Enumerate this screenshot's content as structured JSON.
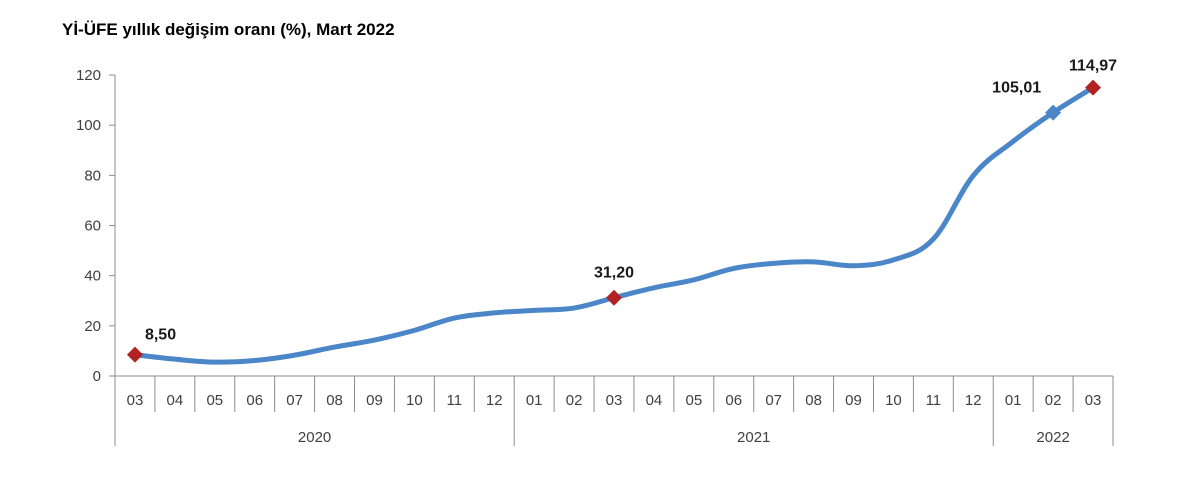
{
  "chart_data": {
    "type": "line",
    "title": "Yİ-ÜFE yıllık değişim oranı (%), Mart 2022",
    "xlabel": "",
    "ylabel": "",
    "ylim": [
      0,
      120
    ],
    "yticks": [
      "0",
      "20",
      "40",
      "60",
      "80",
      "100",
      "120"
    ],
    "categories": [
      "03",
      "04",
      "05",
      "06",
      "07",
      "08",
      "09",
      "10",
      "11",
      "12",
      "01",
      "02",
      "03",
      "04",
      "05",
      "06",
      "07",
      "08",
      "09",
      "10",
      "11",
      "12",
      "01",
      "02",
      "03"
    ],
    "years": [
      {
        "label": "2020",
        "start": 0,
        "end": 9
      },
      {
        "label": "2021",
        "start": 10,
        "end": 21
      },
      {
        "label": "2022",
        "start": 22,
        "end": 24
      }
    ],
    "series": [
      {
        "values": [
          8.5,
          6.71,
          5.53,
          6.17,
          8.33,
          11.53,
          14.33,
          18.2,
          23.11,
          25.15,
          26.16,
          27.09,
          31.2,
          35.17,
          38.33,
          42.89,
          44.92,
          45.52,
          43.96,
          46.31,
          54.62,
          79.89,
          93.53,
          105.01,
          114.97
        ],
        "color": "#4a86c8"
      }
    ],
    "annotations": [
      {
        "index": 0,
        "label": "8,50",
        "marker": "red-diamond"
      },
      {
        "index": 12,
        "label": "31,20",
        "marker": "red-diamond"
      },
      {
        "index": 23,
        "label": "105,01",
        "marker": "blue-diamond"
      },
      {
        "index": 24,
        "label": "114,97",
        "marker": "red-diamond"
      }
    ],
    "marker_colors": {
      "red-diamond": "#b22222",
      "blue-diamond": "#4a86c8"
    },
    "grid": false,
    "legend": "none"
  }
}
